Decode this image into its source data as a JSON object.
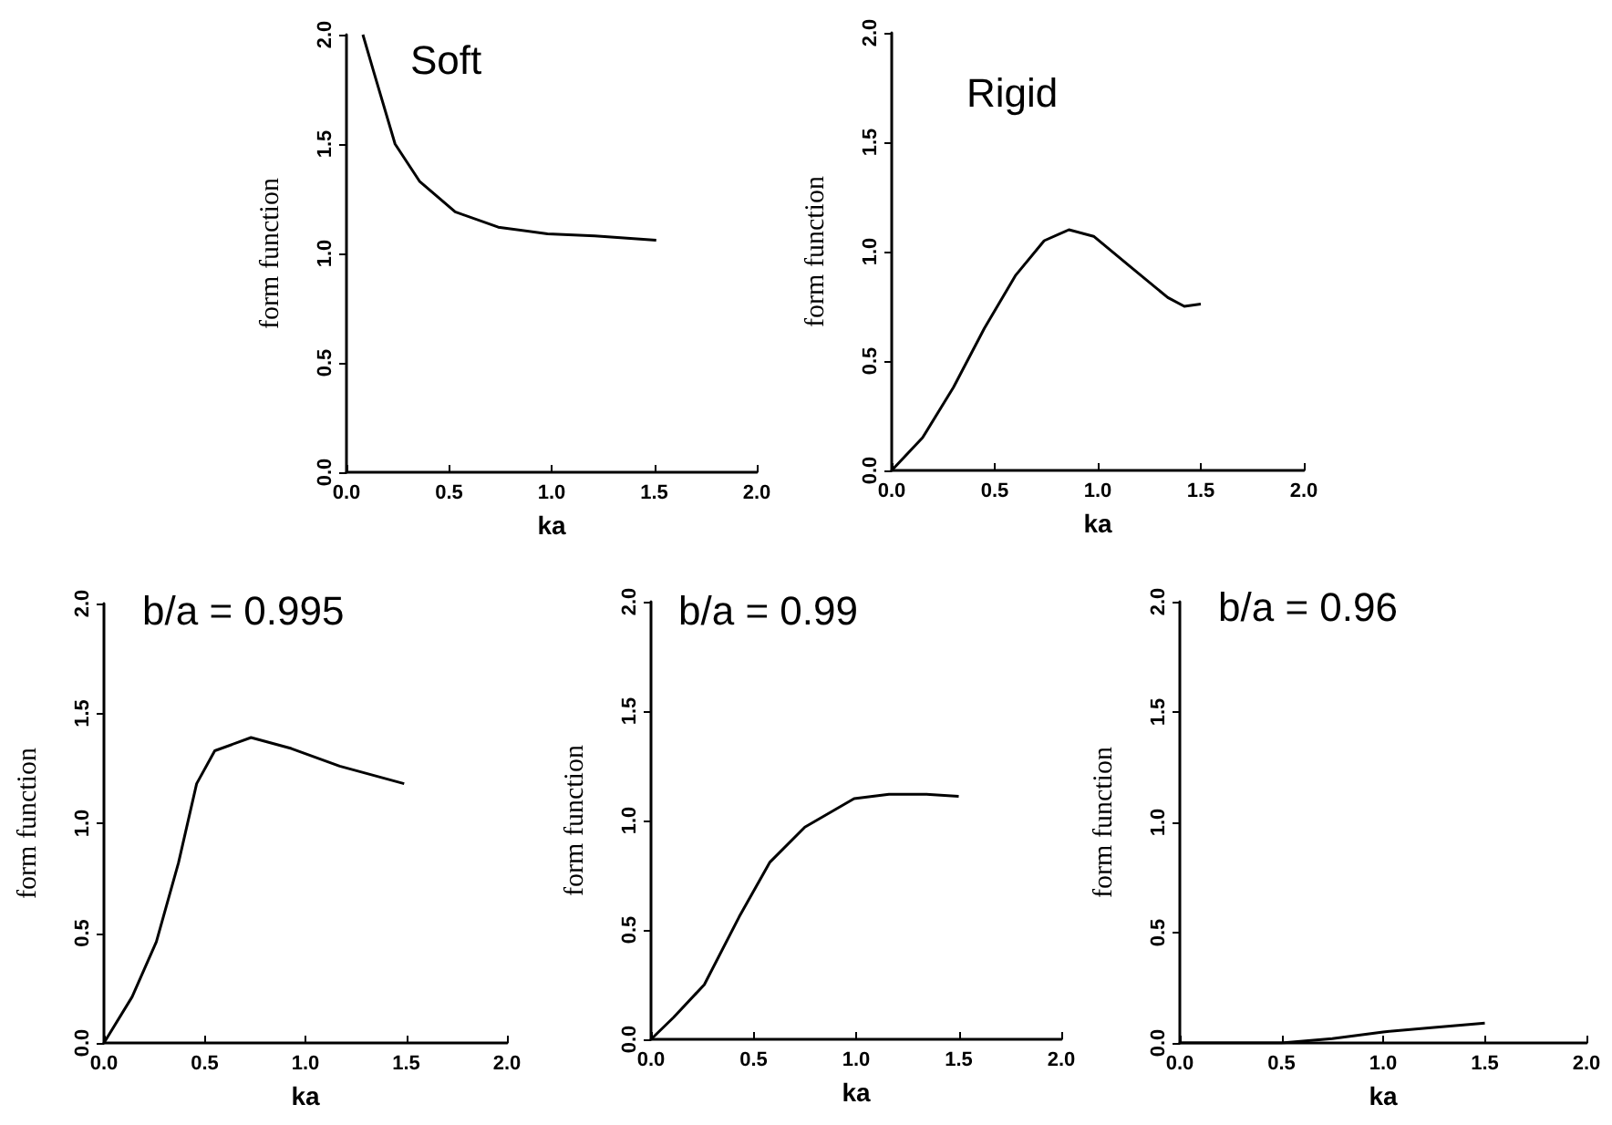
{
  "chart_data": [
    {
      "type": "line",
      "title": "Soft",
      "xlabel": "ka",
      "ylabel": "form function",
      "xlim": [
        0,
        2
      ],
      "ylim": [
        0,
        2
      ],
      "xticks": [
        {
          "value": 0,
          "label": "0.0"
        },
        {
          "value": 0.5,
          "label": "0.5"
        },
        {
          "value": 1,
          "label": "1.0"
        },
        {
          "value": 1.5,
          "label": "1.5"
        },
        {
          "value": 2,
          "label": "2.0"
        }
      ],
      "yticks": [
        {
          "value": 0,
          "label": "0.0"
        },
        {
          "value": 0.5,
          "label": "0.5"
        },
        {
          "value": 1,
          "label": "1.0"
        },
        {
          "value": 1.5,
          "label": "1.5"
        },
        {
          "value": 2,
          "label": "2.0"
        }
      ],
      "grid": false,
      "color": "#000000",
      "x": [
        0.08,
        0.133,
        0.237,
        0.356,
        0.53,
        0.74,
        0.98,
        1.21,
        1.51
      ],
      "values": [
        2.0,
        1.83,
        1.5,
        1.33,
        1.19,
        1.12,
        1.09,
        1.08,
        1.06
      ]
    },
    {
      "type": "line",
      "title": "Rigid",
      "xlabel": "ka",
      "ylabel": "form function",
      "xlim": [
        0,
        2
      ],
      "ylim": [
        0,
        2
      ],
      "xticks": [
        {
          "value": 0,
          "label": "0.0"
        },
        {
          "value": 0.5,
          "label": "0.5"
        },
        {
          "value": 1,
          "label": "1.0"
        },
        {
          "value": 1.5,
          "label": "1.5"
        },
        {
          "value": 2,
          "label": "2.0"
        }
      ],
      "yticks": [
        {
          "value": 0,
          "label": "0.0"
        },
        {
          "value": 0.5,
          "label": "0.5"
        },
        {
          "value": 1,
          "label": "1.0"
        },
        {
          "value": 1.5,
          "label": "1.5"
        },
        {
          "value": 2,
          "label": "2.0"
        }
      ],
      "grid": false,
      "color": "#000000",
      "x": [
        0,
        0.15,
        0.3,
        0.45,
        0.6,
        0.74,
        0.86,
        0.98,
        1.16,
        1.34,
        1.42,
        1.5
      ],
      "values": [
        0,
        0.15,
        0.38,
        0.65,
        0.89,
        1.05,
        1.1,
        1.07,
        0.93,
        0.79,
        0.75,
        0.76
      ]
    },
    {
      "type": "line",
      "title": "b/a = 0.995",
      "xlabel": "ka",
      "ylabel": "form function",
      "xlim": [
        0,
        2
      ],
      "ylim": [
        0,
        2
      ],
      "xticks": [
        {
          "value": 0,
          "label": "0.0"
        },
        {
          "value": 0.5,
          "label": "0.5"
        },
        {
          "value": 1,
          "label": "1.0"
        },
        {
          "value": 1.5,
          "label": "1.5"
        },
        {
          "value": 2,
          "label": "2.0"
        }
      ],
      "yticks": [
        {
          "value": 0,
          "label": "0.0"
        },
        {
          "value": 0.5,
          "label": "0.5"
        },
        {
          "value": 1,
          "label": "1.0"
        },
        {
          "value": 1.5,
          "label": "1.5"
        },
        {
          "value": 2,
          "label": "2.0"
        }
      ],
      "grid": false,
      "color": "#000000",
      "x": [
        0,
        0.14,
        0.26,
        0.37,
        0.46,
        0.55,
        0.73,
        0.93,
        1.17,
        1.49
      ],
      "values": [
        0,
        0.21,
        0.46,
        0.82,
        1.18,
        1.33,
        1.39,
        1.34,
        1.26,
        1.18
      ]
    },
    {
      "type": "line",
      "title": "b/a = 0.99",
      "xlabel": "ka",
      "ylabel": "form function",
      "xlim": [
        0,
        2
      ],
      "ylim": [
        0,
        2
      ],
      "xticks": [
        {
          "value": 0,
          "label": "0.0"
        },
        {
          "value": 0.5,
          "label": "0.5"
        },
        {
          "value": 1,
          "label": "1.0"
        },
        {
          "value": 1.5,
          "label": "1.5"
        },
        {
          "value": 2,
          "label": "2.0"
        }
      ],
      "yticks": [
        {
          "value": 0,
          "label": "0.0"
        },
        {
          "value": 0.5,
          "label": "0.5"
        },
        {
          "value": 1,
          "label": "1.0"
        },
        {
          "value": 1.5,
          "label": "1.5"
        },
        {
          "value": 2,
          "label": "2.0"
        }
      ],
      "grid": false,
      "color": "#000000",
      "x": [
        0,
        0.11,
        0.26,
        0.43,
        0.58,
        0.75,
        0.99,
        1.16,
        1.34,
        1.5
      ],
      "values": [
        0,
        0.1,
        0.25,
        0.56,
        0.81,
        0.97,
        1.1,
        1.12,
        1.12,
        1.11
      ]
    },
    {
      "type": "line",
      "title": "b/a = 0.96",
      "xlabel": "ka",
      "ylabel": "form function",
      "xlim": [
        0,
        2
      ],
      "ylim": [
        0,
        2
      ],
      "xticks": [
        {
          "value": 0,
          "label": "0.0"
        },
        {
          "value": 0.5,
          "label": "0.5"
        },
        {
          "value": 1,
          "label": "1.0"
        },
        {
          "value": 1.5,
          "label": "1.5"
        },
        {
          "value": 2,
          "label": "2.0"
        }
      ],
      "yticks": [
        {
          "value": 0,
          "label": "0.0"
        },
        {
          "value": 0.5,
          "label": "0.5"
        },
        {
          "value": 1,
          "label": "1.0"
        },
        {
          "value": 1.5,
          "label": "1.5"
        },
        {
          "value": 2,
          "label": "2.0"
        }
      ],
      "grid": false,
      "color": "#000000",
      "x": [
        0,
        0.5,
        0.75,
        1.0,
        1.25,
        1.5
      ],
      "values": [
        0,
        0,
        0.02,
        0.05,
        0.07,
        0.09
      ]
    }
  ]
}
